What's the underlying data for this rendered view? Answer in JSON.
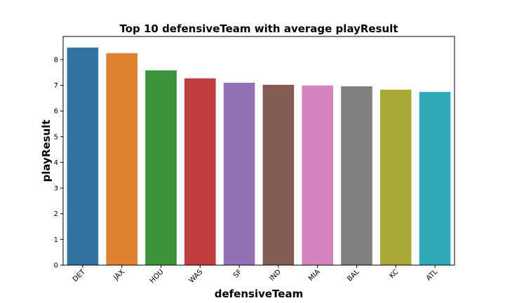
{
  "chart_data": {
    "type": "bar",
    "title": "Top 10 defensiveTeam with average playResult",
    "xlabel": "defensiveTeam",
    "ylabel": "playResult",
    "categories": [
      "DET",
      "JAX",
      "HOU",
      "WAS",
      "SF",
      "IND",
      "MIA",
      "BAL",
      "KC",
      "ATL"
    ],
    "values": [
      8.47,
      8.25,
      7.58,
      7.27,
      7.1,
      7.02,
      6.99,
      6.96,
      6.83,
      6.74
    ],
    "colors": [
      "#3274a1",
      "#e1812c",
      "#3a923a",
      "#c03d3e",
      "#9372b2",
      "#845b53",
      "#d684bd",
      "#7f7f7f",
      "#a9aa35",
      "#2eaab8"
    ],
    "yticks": [
      "0",
      "1",
      "2",
      "3",
      "4",
      "5",
      "6",
      "7",
      "8"
    ],
    "ylim": [
      0,
      8.9
    ],
    "grid": false,
    "legend": "none"
  }
}
